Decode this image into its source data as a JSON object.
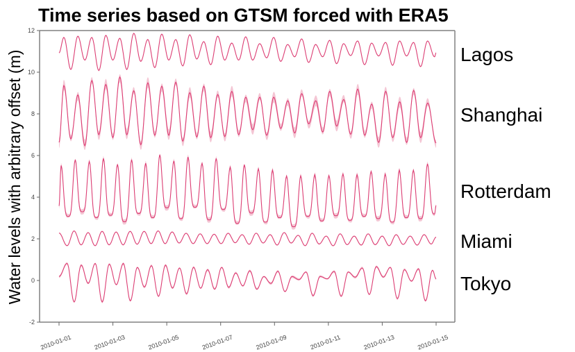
{
  "chart_data": {
    "type": "line",
    "title": "Time series based on GTSM forced with ERA5",
    "xlabel": "",
    "ylabel": "Water levels with arbitrary offset (m)",
    "x_range": [
      "2010-01-01",
      "2010-01-15"
    ],
    "xlim_hours_from_start": [
      0,
      336
    ],
    "ylim": [
      -2,
      12
    ],
    "yticks": [
      "12",
      "10",
      "8",
      "6",
      "4",
      "2",
      "0",
      "-2"
    ],
    "ytick_values": [
      12,
      10,
      8,
      6,
      4,
      2,
      0,
      -2
    ],
    "xticks": [
      "2010-01-01",
      "2010-01-03",
      "2010-01-05",
      "2010-01-07",
      "2010-01-09",
      "2010-01-11",
      "2010-01-13",
      "2010-01-15"
    ],
    "xtick_hours": [
      0,
      48,
      96,
      144,
      192,
      240,
      288,
      336
    ],
    "grid": false,
    "line_color": "#dc3d73",
    "band_color": "#f2bccd",
    "series": [
      {
        "name": "Lagos",
        "start_value": 10.93,
        "end_value": 10.93,
        "first_extreme_hour": 4.3,
        "last_extreme_hour": 334.6,
        "uncertainty": 0.02,
        "extremes": [
          11.67,
          10.13,
          11.73,
          10.58,
          11.67,
          10.08,
          11.77,
          10.58,
          11.63,
          10.13,
          11.87,
          10.52,
          11.57,
          10.22,
          11.83,
          10.58,
          11.57,
          10.3,
          11.8,
          10.63,
          11.47,
          10.36,
          11.73,
          10.58,
          11.4,
          10.58,
          11.7,
          10.58,
          11.37,
          10.69,
          11.67,
          10.52,
          11.33,
          10.74,
          11.6,
          10.47,
          11.33,
          10.74,
          11.53,
          10.41,
          11.37,
          10.8,
          11.5,
          10.36,
          11.4,
          10.78,
          11.43,
          10.33,
          11.5,
          10.78,
          11.43,
          10.27,
          11.5,
          10.74
        ]
      },
      {
        "name": "Shanghai",
        "start_value": 6.63,
        "end_value": 6.6,
        "first_extreme_hour": 4.3,
        "last_extreme_hour": 328.5,
        "uncertainty": 0.2,
        "extremes": [
          9.36,
          6.8,
          8.91,
          6.47,
          9.6,
          7.0,
          9.41,
          6.86,
          9.77,
          7.0,
          9.11,
          6.52,
          9.49,
          6.97,
          9.33,
          6.97,
          9.52,
          6.69,
          9.02,
          6.89,
          9.33,
          6.86,
          8.93,
          6.91,
          9.08,
          7.0,
          8.8,
          7.24,
          8.8,
          6.97,
          8.8,
          7.3,
          8.63,
          7.08,
          8.97,
          7.52,
          8.63,
          7.13,
          9.08,
          7.41,
          8.69,
          7.02,
          9.19,
          6.97,
          8.47,
          6.63,
          9.08,
          6.86,
          8.58,
          6.63,
          9.13,
          6.86,
          8.52
        ]
      },
      {
        "name": "Rotterdam",
        "start_value": 3.58,
        "end_value": 3.6,
        "first_extreme_hour": 1.9,
        "last_extreme_hour": 334.6,
        "uncertainty": 0.1,
        "extremes": [
          5.52,
          3.08,
          5.8,
          3.3,
          5.71,
          3.02,
          5.86,
          3.13,
          5.58,
          2.82,
          5.8,
          3.22,
          5.63,
          3.02,
          6.04,
          3.49,
          5.74,
          2.97,
          5.93,
          3.52,
          5.63,
          2.91,
          5.86,
          3.41,
          5.44,
          2.74,
          5.56,
          3.24,
          5.36,
          2.8,
          5.3,
          3.02,
          5.02,
          2.58,
          5.02,
          3.08,
          5.08,
          2.86,
          5.04,
          3.11,
          5.11,
          2.89,
          5.08,
          3.08,
          5.24,
          2.97,
          5.11,
          2.8,
          5.3,
          3.02,
          5.3,
          2.97,
          5.6,
          3.19
        ]
      },
      {
        "name": "Miami",
        "start_value": 2.28,
        "end_value": 2.08,
        "first_extreme_hour": 7.2,
        "last_extreme_hour": 331.6,
        "uncertainty": 0.02,
        "extremes": [
          1.67,
          2.38,
          1.71,
          2.3,
          1.67,
          2.36,
          1.71,
          2.33,
          1.71,
          2.36,
          1.74,
          2.36,
          1.77,
          2.38,
          1.77,
          2.33,
          1.8,
          2.27,
          1.77,
          2.24,
          1.77,
          2.22,
          1.77,
          2.27,
          1.81,
          2.2,
          1.74,
          2.27,
          1.8,
          2.2,
          1.7,
          2.3,
          1.8,
          2.17,
          1.67,
          2.27,
          1.75,
          2.13,
          1.67,
          2.24,
          1.72,
          2.13,
          1.7,
          2.24,
          1.72,
          2.13,
          1.67,
          2.2,
          1.73,
          2.13,
          1.7,
          2.2,
          1.75
        ]
      },
      {
        "name": "Tokyo",
        "start_value": 0.19,
        "end_value": 0.08,
        "first_extreme_hour": 7.2,
        "last_extreme_hour": 332.8,
        "uncertainty": 0.05,
        "extremes": [
          0.82,
          -1.03,
          0.74,
          -0.14,
          0.82,
          -1.03,
          0.78,
          -0.2,
          0.82,
          -0.98,
          0.63,
          -0.31,
          0.71,
          -0.76,
          0.74,
          -0.37,
          0.6,
          -0.64,
          0.63,
          -0.37,
          0.52,
          -0.42,
          0.63,
          -0.33,
          0.36,
          -0.26,
          0.47,
          -0.42,
          0.19,
          -0.14,
          0.44,
          -0.53,
          0.19,
          0.04,
          0.41,
          -0.73,
          0.19,
          0.08,
          0.44,
          -0.76,
          0.41,
          0.16,
          0.6,
          -0.67,
          0.67,
          0.16,
          0.63,
          -0.87,
          0.52,
          -0.03,
          0.56,
          -0.98,
          0.49
        ]
      }
    ]
  }
}
